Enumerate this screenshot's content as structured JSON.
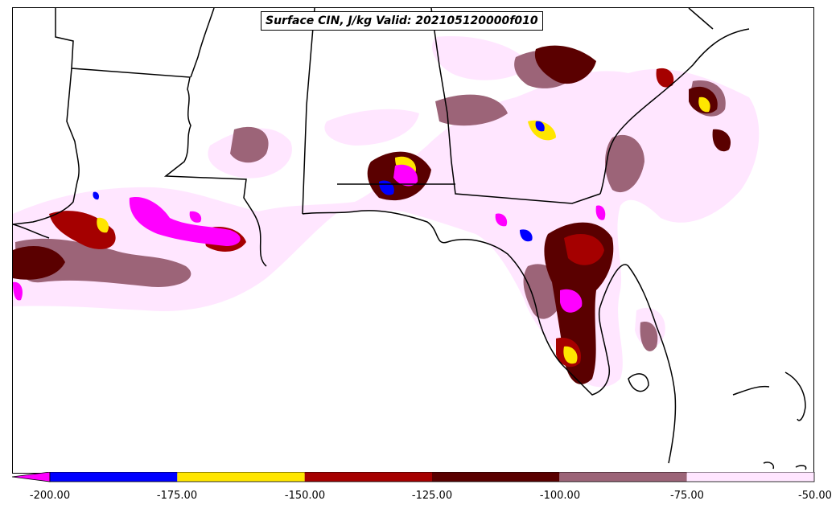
{
  "title": "Surface CIN, J/kg Valid: 202105120000f010",
  "colorbar": {
    "extend": "min",
    "underflow_color": "#ff00ff",
    "segments": [
      {
        "from": -200,
        "to": -175,
        "color": "#0000ff"
      },
      {
        "from": -175,
        "to": -150,
        "color": "#ffe600"
      },
      {
        "from": -150,
        "to": -125,
        "color": "#a50000"
      },
      {
        "from": -125,
        "to": -100,
        "color": "#5a0000"
      },
      {
        "from": -100,
        "to": -75,
        "color": "#9c6478"
      },
      {
        "from": -75,
        "to": -50,
        "color": "#ffe6ff"
      }
    ],
    "tick_labels": [
      "-200.00",
      "-175.00",
      "-150.00",
      "-125.00",
      "-100.00",
      "-75.00",
      "-50.00"
    ]
  },
  "legend_colors": {
    "below_-200": "#ff00ff",
    "-200_to_-175": "#0000ff",
    "-175_to_-150": "#ffe600",
    "-150_to_-125": "#a50000",
    "-125_to_-100": "#5a0000",
    "-100_to_-75": "#9c6478",
    "-75_to_-50": "#ffe6ff"
  }
}
